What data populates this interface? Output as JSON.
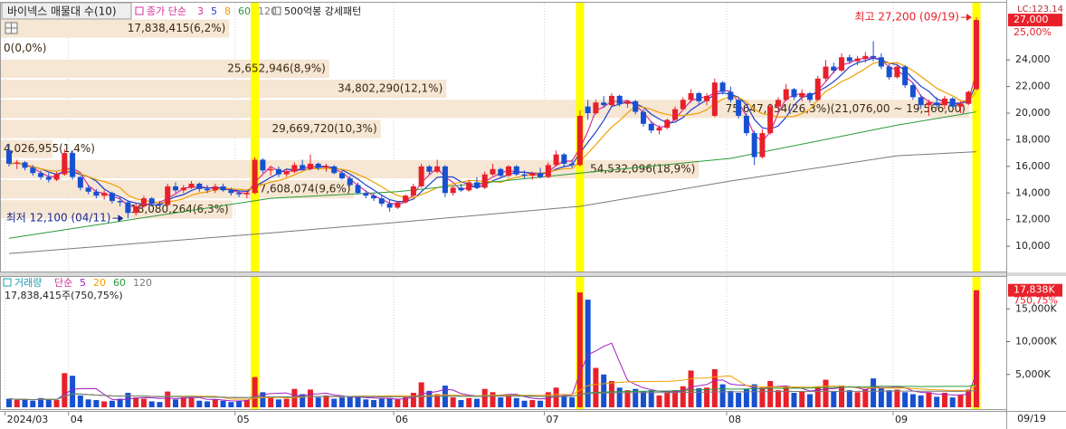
{
  "chart_data": {
    "type": "candlestick",
    "title": "바이넥스 매물대 수(10)",
    "ma_label": "종가 단순",
    "ma_series": [
      {
        "name": "3",
        "color": "#d8309a"
      },
      {
        "name": "5",
        "color": "#1f3fd0"
      },
      {
        "name": "8",
        "color": "#f0a000"
      },
      {
        "name": "60",
        "color": "#2a9a3a",
        "x": [
          0,
          33,
          49,
          72,
          91,
          112,
          122
        ],
        "values": [
          10600,
          13600,
          14100,
          15500,
          16600,
          19100,
          20100
        ]
      },
      {
        "name": "120",
        "color": "#7a7a7a",
        "x": [
          0,
          33,
          49,
          72,
          91,
          112,
          122
        ],
        "values": [
          9450,
          11000,
          11800,
          13000,
          14900,
          16800,
          17100
        ]
      }
    ],
    "pattern_label": "500억봉 강세패턴",
    "pattern_days": [
      31,
      72,
      122
    ],
    "pattern_color": "#ffff00",
    "up_color": "#e8202a",
    "down_color": "#1750d0",
    "lc_label": "LC:123.14",
    "last_price": {
      "value": 27000,
      "label": "27,000"
    },
    "last_change": {
      "value": 25.0,
      "label": "25,00%"
    },
    "last_date_label": "09/19",
    "categories": [
      "2024/03",
      null,
      null,
      null,
      null,
      null,
      null,
      null,
      "04",
      null,
      null,
      null,
      null,
      null,
      null,
      null,
      null,
      null,
      null,
      null,
      null,
      null,
      null,
      null,
      null,
      null,
      null,
      null,
      null,
      "05",
      null,
      null,
      null,
      null,
      null,
      null,
      null,
      null,
      null,
      null,
      null,
      null,
      null,
      null,
      null,
      null,
      null,
      null,
      null,
      "06",
      null,
      null,
      null,
      null,
      null,
      null,
      null,
      null,
      null,
      null,
      null,
      null,
      null,
      null,
      null,
      null,
      null,
      null,
      "07",
      null,
      null,
      null,
      null,
      null,
      null,
      null,
      null,
      null,
      null,
      null,
      null,
      null,
      null,
      null,
      null,
      null,
      null,
      null,
      null,
      null,
      null,
      "08",
      null,
      null,
      null,
      null,
      null,
      null,
      null,
      null,
      null,
      null,
      null,
      null,
      null,
      null,
      null,
      null,
      null,
      null,
      null,
      null,
      "09",
      null,
      null,
      null,
      null,
      null,
      null,
      null,
      null,
      null,
      null
    ],
    "ohlc": [
      [
        17200,
        17700,
        16000,
        16200
      ],
      [
        16200,
        16500,
        15800,
        16300
      ],
      [
        16300,
        16400,
        15700,
        15900
      ],
      [
        15900,
        16100,
        15300,
        15500
      ],
      [
        15500,
        15700,
        15000,
        15200
      ],
      [
        15200,
        15500,
        14800,
        15000
      ],
      [
        15000,
        15600,
        14900,
        15400
      ],
      [
        15400,
        17300,
        15300,
        17000
      ],
      [
        17000,
        17200,
        15000,
        15200
      ],
      [
        15200,
        15300,
        14200,
        14400
      ],
      [
        14400,
        14600,
        13900,
        14100
      ],
      [
        14100,
        14300,
        13600,
        13800
      ],
      [
        13800,
        14200,
        13500,
        14000
      ],
      [
        14000,
        14100,
        13200,
        13400
      ],
      [
        13400,
        13700,
        13000,
        13300
      ],
      [
        13300,
        13400,
        12100,
        12500
      ],
      [
        12500,
        13200,
        12300,
        13000
      ],
      [
        13000,
        13800,
        12900,
        13600
      ],
      [
        13600,
        13700,
        13000,
        13200
      ],
      [
        13200,
        13400,
        12900,
        13100
      ],
      [
        13100,
        14700,
        13000,
        14500
      ],
      [
        14500,
        14800,
        14000,
        14200
      ],
      [
        14200,
        14600,
        14000,
        14400
      ],
      [
        14400,
        14900,
        14300,
        14700
      ],
      [
        14700,
        14800,
        14100,
        14300
      ],
      [
        14300,
        14600,
        14000,
        14200
      ],
      [
        14200,
        14700,
        14000,
        14500
      ],
      [
        14500,
        14700,
        14100,
        14200
      ],
      [
        14200,
        14400,
        13800,
        14000
      ],
      [
        14000,
        14200,
        13700,
        13900
      ],
      [
        13900,
        14100,
        13600,
        14000
      ],
      [
        14000,
        16700,
        13900,
        16500
      ],
      [
        16500,
        16600,
        15500,
        15700
      ],
      [
        15700,
        16000,
        15300,
        15800
      ],
      [
        15800,
        16000,
        15200,
        15400
      ],
      [
        15400,
        15800,
        15200,
        15600
      ],
      [
        15600,
        16300,
        15500,
        16100
      ],
      [
        16100,
        16500,
        15700,
        15800
      ],
      [
        15800,
        16900,
        15700,
        16200
      ],
      [
        16200,
        16300,
        15700,
        15900
      ],
      [
        15900,
        16200,
        15600,
        16000
      ],
      [
        16000,
        16100,
        15400,
        15500
      ],
      [
        15500,
        15700,
        15000,
        15100
      ],
      [
        15100,
        15300,
        14500,
        14600
      ],
      [
        14600,
        14800,
        13900,
        14000
      ],
      [
        14000,
        14200,
        13600,
        13800
      ],
      [
        13800,
        14000,
        13400,
        13600
      ],
      [
        13600,
        13800,
        13000,
        13200
      ],
      [
        13200,
        13500,
        12600,
        12900
      ],
      [
        12900,
        13400,
        12800,
        13300
      ],
      [
        13300,
        13900,
        13200,
        13800
      ],
      [
        13800,
        14700,
        13700,
        14500
      ],
      [
        14500,
        16200,
        14400,
        16000
      ],
      [
        16000,
        16100,
        15400,
        15600
      ],
      [
        15600,
        16500,
        15500,
        16000
      ],
      [
        16000,
        16100,
        13700,
        14000
      ],
      [
        14000,
        14600,
        13800,
        14400
      ],
      [
        14400,
        14700,
        14100,
        14200
      ],
      [
        14200,
        15000,
        14100,
        14800
      ],
      [
        14800,
        15200,
        14300,
        14400
      ],
      [
        14400,
        15600,
        14300,
        15400
      ],
      [
        15400,
        16200,
        15300,
        15800
      ],
      [
        15800,
        15900,
        15200,
        15300
      ],
      [
        15300,
        16100,
        15200,
        16000
      ],
      [
        16000,
        16100,
        15300,
        15400
      ],
      [
        15400,
        15700,
        15100,
        15300
      ],
      [
        15300,
        15600,
        15000,
        15500
      ],
      [
        15500,
        15900,
        15100,
        15200
      ],
      [
        15200,
        16300,
        15100,
        16100
      ],
      [
        16100,
        17200,
        16000,
        16900
      ],
      [
        16900,
        17000,
        16000,
        16200
      ],
      [
        16200,
        16500,
        15900,
        16100
      ],
      [
        16100,
        20200,
        16000,
        19800
      ],
      [
        20500,
        21000,
        19500,
        20000
      ],
      [
        20000,
        21000,
        19900,
        20800
      ],
      [
        20800,
        21300,
        20400,
        20600
      ],
      [
        20600,
        21500,
        20500,
        21300
      ],
      [
        21300,
        21400,
        20500,
        20700
      ],
      [
        20700,
        21000,
        20400,
        20900
      ],
      [
        20900,
        21000,
        19900,
        20100
      ],
      [
        20100,
        20300,
        19000,
        19200
      ],
      [
        19200,
        19400,
        18500,
        18700
      ],
      [
        18700,
        19100,
        18400,
        18900
      ],
      [
        18900,
        19600,
        18800,
        19500
      ],
      [
        19500,
        20500,
        19400,
        20300
      ],
      [
        20300,
        21200,
        20200,
        21000
      ],
      [
        21000,
        21800,
        20800,
        21500
      ],
      [
        21500,
        21600,
        20700,
        20900
      ],
      [
        20900,
        21500,
        20600,
        21300
      ],
      [
        19800,
        22600,
        19700,
        22300
      ],
      [
        22300,
        22400,
        21400,
        21600
      ],
      [
        21600,
        22000,
        20800,
        21000
      ],
      [
        21000,
        21200,
        19600,
        19800
      ],
      [
        19800,
        20000,
        18300,
        18500
      ],
      [
        18500,
        18700,
        16100,
        16700
      ],
      [
        16700,
        18800,
        16600,
        18500
      ],
      [
        18500,
        20700,
        18400,
        20500
      ],
      [
        20500,
        21200,
        20300,
        21000
      ],
      [
        21000,
        22200,
        20900,
        21800
      ],
      [
        21800,
        21900,
        21000,
        21200
      ],
      [
        21200,
        21800,
        20900,
        21500
      ],
      [
        21500,
        21600,
        20800,
        21000
      ],
      [
        21000,
        22800,
        20900,
        22600
      ],
      [
        22600,
        24000,
        22400,
        23500
      ],
      [
        23500,
        23800,
        23000,
        23200
      ],
      [
        23200,
        24500,
        23100,
        24200
      ],
      [
        24200,
        24400,
        23700,
        23900
      ],
      [
        23900,
        24300,
        23600,
        24100
      ],
      [
        24100,
        24600,
        23800,
        24300
      ],
      [
        24300,
        25400,
        23900,
        24200
      ],
      [
        24200,
        24500,
        23300,
        23500
      ],
      [
        23500,
        23700,
        22500,
        22700
      ],
      [
        22700,
        23700,
        22600,
        23500
      ],
      [
        23500,
        23600,
        21900,
        22100
      ],
      [
        22100,
        22300,
        21000,
        21200
      ],
      [
        21200,
        21400,
        20300,
        20600
      ],
      [
        20600,
        21000,
        19800,
        20800
      ],
      [
        20800,
        21200,
        20400,
        20600
      ],
      [
        20600,
        21300,
        20300,
        21100
      ],
      [
        21100,
        21200,
        20400,
        20500
      ],
      [
        20500,
        20900,
        20000,
        20700
      ],
      [
        20700,
        21700,
        20600,
        21600
      ],
      [
        21800,
        27200,
        21700,
        27000
      ]
    ],
    "ylim": [
      8100,
      28300
    ],
    "yticks": [
      {
        "value": 10000,
        "label": "10,000"
      },
      {
        "value": 12000,
        "label": "12,000"
      },
      {
        "value": 14000,
        "label": "14,000"
      },
      {
        "value": 16000,
        "label": "16,000"
      },
      {
        "value": 18000,
        "label": "18,000"
      },
      {
        "value": 20000,
        "label": "20,000"
      },
      {
        "value": 22000,
        "label": "22,000"
      },
      {
        "value": 24000,
        "label": "24,000"
      }
    ],
    "annotations": [
      {
        "text": "최고 27,200 (09/19)",
        "x": 122,
        "value": 27200,
        "color": "#e8202a"
      },
      {
        "text": "최저 12,100 (04/11)",
        "x": 15,
        "value": 12100,
        "color": "#1c2a8c"
      }
    ],
    "profile": {
      "color": "#f6e6d4",
      "edges": [
        12016,
        13526,
        15036,
        16546,
        18056,
        19566,
        21076,
        22586,
        24096,
        25606,
        27116
      ],
      "values": [
        18080264,
        27608074,
        54532096,
        4026955,
        29669720,
        75647054,
        34802290,
        25652946,
        0,
        17838415
      ],
      "percent": [
        6.3,
        9.6,
        18.9,
        1.4,
        10.3,
        26.3,
        12.1,
        8.9,
        0.0,
        6.2
      ],
      "value_labels": [
        "18,080,264(6,3%)",
        "27,608,074(9,6%)",
        "54,532,096(18,9%)",
        "4,026,955(1,4%)",
        "29,669,720(10,3%)",
        "75,647,054(26,3%)(21,076,00 ~ 19,566,00)",
        "34,802,290(12,1%)",
        "25,652,946(8,9%)",
        "0(0,0%)",
        "17,838,415(6,2%)"
      ]
    },
    "volume": {
      "label": "거래량",
      "ma_label": "단순",
      "header": "17,838,415주(750,75%)",
      "ma_series": [
        {
          "name": "5",
          "color": "#a020c0"
        },
        {
          "name": "20",
          "color": "#f0a000"
        },
        {
          "name": "60",
          "color": "#2a9a3a"
        },
        {
          "name": "120",
          "color": "#7a7a7a"
        }
      ],
      "values": [
        1300000,
        1100000,
        1200000,
        1000000,
        1400000,
        1200000,
        1100000,
        5200000,
        4800000,
        1800000,
        1200000,
        1100000,
        900000,
        1000000,
        1300000,
        2200000,
        1500000,
        1300000,
        900000,
        800000,
        2400000,
        1200000,
        1500000,
        1400000,
        1000000,
        900000,
        1200000,
        1000000,
        800000,
        900000,
        1100000,
        4600000,
        2300000,
        1500000,
        1200000,
        1300000,
        2800000,
        2000000,
        2700000,
        1500000,
        1800000,
        1300000,
        1500000,
        1600000,
        1700000,
        1200000,
        1100000,
        1300000,
        1400000,
        1200000,
        1500000,
        2200000,
        3800000,
        2500000,
        2000000,
        3300000,
        1500000,
        1100000,
        1400000,
        1300000,
        2800000,
        2300000,
        1500000,
        1900000,
        1400000,
        1000000,
        1100000,
        1000000,
        2300000,
        3000000,
        1600000,
        1500000,
        17500000,
        16400000,
        6000000,
        5000000,
        4000000,
        3000000,
        2600000,
        2800000,
        2400000,
        2600000,
        1800000,
        2200000,
        2600000,
        3200000,
        5600000,
        2900000,
        3000000,
        5800000,
        3500000,
        2500000,
        2200000,
        2800000,
        3500000,
        3000000,
        4000000,
        2600000,
        3200000,
        2200000,
        2400000,
        2000000,
        3200000,
        4200000,
        2400000,
        3300000,
        2600000,
        2300000,
        2800000,
        4400000,
        2900000,
        2600000,
        2700000,
        2300000,
        2000000,
        1800000,
        2300000,
        1600000,
        2200000,
        1500000,
        1900000,
        2700000,
        17838415
      ],
      "ylim": [
        0,
        20000000
      ],
      "yticks": [
        {
          "value": 5000000,
          "label": "5,000K"
        },
        {
          "value": 10000000,
          "label": "10,000K"
        },
        {
          "value": 15000000,
          "label": "15,000K"
        }
      ],
      "last_label": "17,838K",
      "last_change": {
        "value": 750.75,
        "label": "750,75%"
      }
    }
  }
}
